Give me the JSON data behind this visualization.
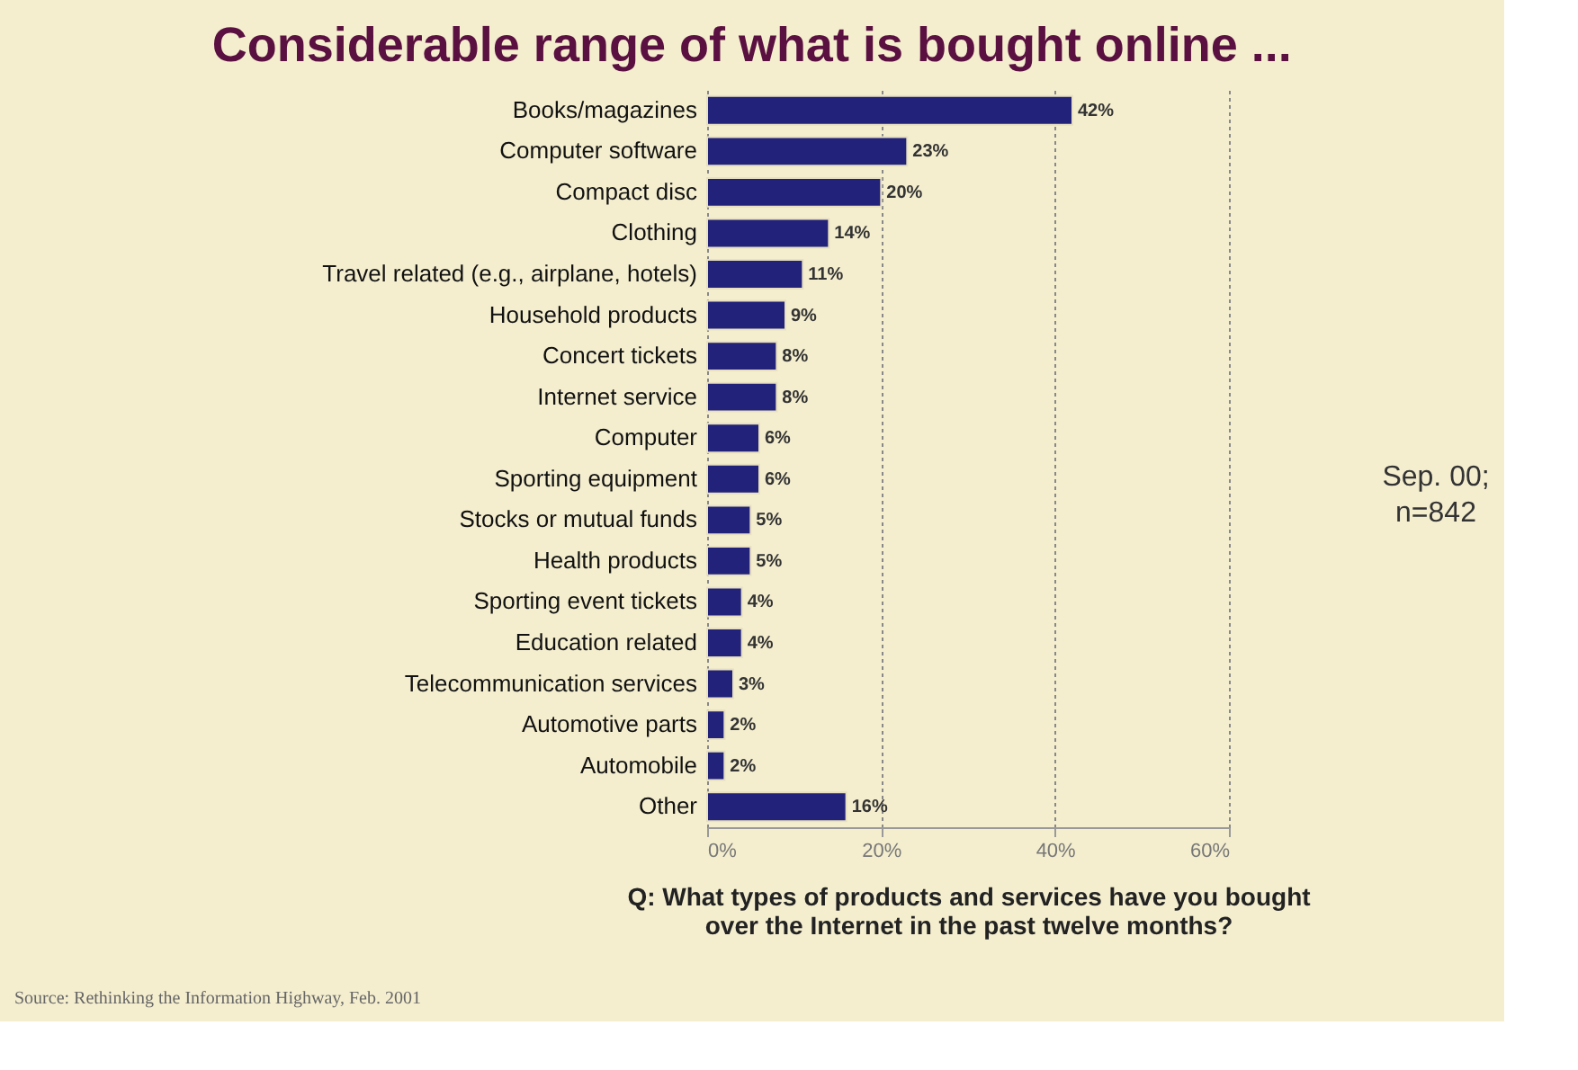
{
  "chart_data": {
    "type": "bar",
    "orientation": "horizontal",
    "title": "Considerable range of what is bought online ...",
    "categories": [
      "Books/magazines",
      "Computer software",
      "Compact disc",
      "Clothing",
      "Travel related (e.g., airplane, hotels)",
      "Household products",
      "Concert tickets",
      "Internet service",
      "Computer",
      "Sporting equipment",
      "Stocks or mutual funds",
      "Health products",
      "Sporting event tickets",
      "Education related",
      "Telecommunication services",
      "Automotive parts",
      "Automobile",
      "Other"
    ],
    "values": [
      42,
      23,
      20,
      14,
      11,
      9,
      8,
      8,
      6,
      6,
      5,
      5,
      4,
      4,
      3,
      2,
      2,
      16
    ],
    "value_labels": [
      "42%",
      "23%",
      "20%",
      "14%",
      "11%",
      "9%",
      "8%",
      "8%",
      "6%",
      "6%",
      "5%",
      "5%",
      "4%",
      "4%",
      "3%",
      "2%",
      "2%",
      "16%"
    ],
    "color": "#22227a",
    "xlim": [
      0,
      60
    ],
    "xticks": [
      {
        "value": 0,
        "label": "0%"
      },
      {
        "value": 20,
        "label": "20%"
      },
      {
        "value": 40,
        "label": "40%"
      },
      {
        "value": 60,
        "label": "60%"
      }
    ],
    "grid": "x",
    "xlabel": "Q: What types of products and services have you bought over the Internet in the past twelve months?",
    "annotations": [
      "Sep. 00; n=842",
      "Source: Rethinking the Information Highway, Feb. 2001"
    ]
  }
}
